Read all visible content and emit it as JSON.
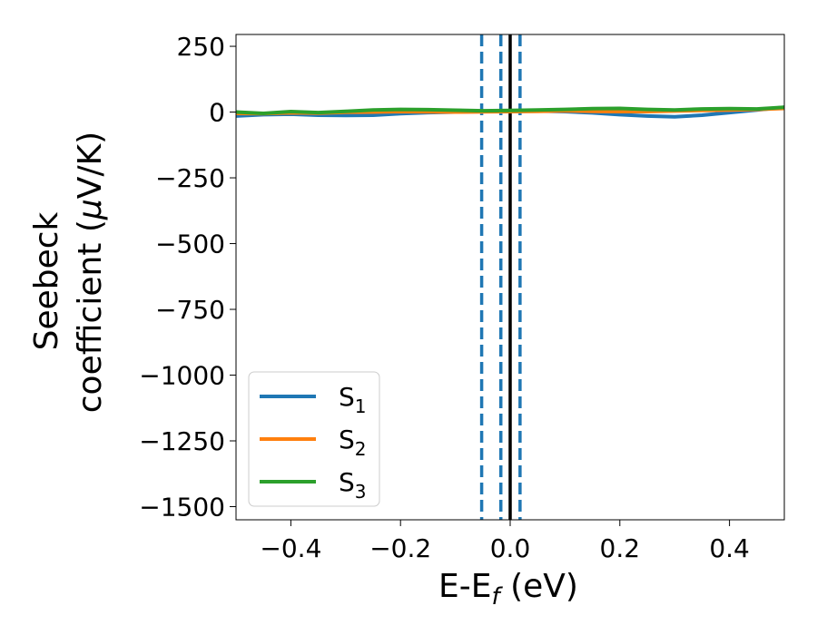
{
  "chart_data": {
    "type": "line",
    "xlabel": "E-E",
    "xlabel_sub": "f",
    "xlabel_unit": " (eV)",
    "ylabel_line1": "Seebeck",
    "ylabel_line2": "coefficient  (",
    "ylabel_mu": "μ",
    "ylabel_unit": "V/K)",
    "xlim": [
      -0.5,
      0.5
    ],
    "ylim": [
      -1550,
      295
    ],
    "xticks": [
      -0.4,
      -0.2,
      0.0,
      0.2,
      0.4
    ],
    "xtick_labels": [
      "−0.4",
      "−0.2",
      "0.0",
      "0.2",
      "0.4"
    ],
    "yticks": [
      250,
      0,
      -250,
      -500,
      -750,
      -1000,
      -1250,
      -1500
    ],
    "ytick_labels": [
      "250",
      "0",
      "−250",
      "−500",
      "−750",
      "−1000",
      "−1250",
      "−1500"
    ],
    "grid": false,
    "legend_position": "lower-left",
    "series": [
      {
        "name": "S",
        "sub": "1",
        "color": "#1f77b4",
        "x": [
          -0.5,
          -0.45,
          -0.4,
          -0.35,
          -0.3,
          -0.25,
          -0.2,
          -0.15,
          -0.1,
          -0.05,
          0.0,
          0.05,
          0.1,
          0.15,
          0.2,
          0.25,
          0.3,
          0.35,
          0.4,
          0.45,
          0.5
        ],
        "y": [
          -15,
          -10,
          -8,
          -12,
          -13,
          -12,
          -6,
          -2,
          0,
          2,
          3,
          4,
          2,
          -3,
          -10,
          -15,
          -18,
          -12,
          -2,
          8,
          18
        ]
      },
      {
        "name": "S",
        "sub": "2",
        "color": "#ff7f0e",
        "x": [
          -0.5,
          -0.45,
          -0.4,
          -0.35,
          -0.3,
          -0.25,
          -0.2,
          -0.15,
          -0.1,
          -0.05,
          0.0,
          0.05,
          0.1,
          0.15,
          0.2,
          0.25,
          0.3,
          0.35,
          0.4,
          0.45,
          0.5
        ],
        "y": [
          -5,
          -6,
          -3,
          -4,
          -1,
          0,
          2,
          1,
          0,
          1,
          2,
          3,
          5,
          3,
          2,
          2,
          4,
          6,
          8,
          10,
          14
        ]
      },
      {
        "name": "S",
        "sub": "3",
        "color": "#2ca02c",
        "x": [
          -0.5,
          -0.45,
          -0.4,
          -0.35,
          -0.3,
          -0.25,
          -0.2,
          -0.15,
          -0.1,
          -0.05,
          0.0,
          0.05,
          0.1,
          0.15,
          0.2,
          0.25,
          0.3,
          0.35,
          0.4,
          0.45,
          0.5
        ],
        "y": [
          0,
          -5,
          2,
          -2,
          3,
          8,
          10,
          9,
          7,
          5,
          6,
          8,
          10,
          13,
          14,
          10,
          8,
          12,
          13,
          12,
          18
        ]
      }
    ],
    "vlines": [
      {
        "x": -0.052,
        "style": "dashed",
        "color": "#1f77b4"
      },
      {
        "x": -0.017,
        "style": "dashed",
        "color": "#1f77b4"
      },
      {
        "x": 0.0,
        "style": "solid",
        "color": "#000000"
      },
      {
        "x": 0.018,
        "style": "dashed",
        "color": "#1f77b4"
      }
    ]
  }
}
